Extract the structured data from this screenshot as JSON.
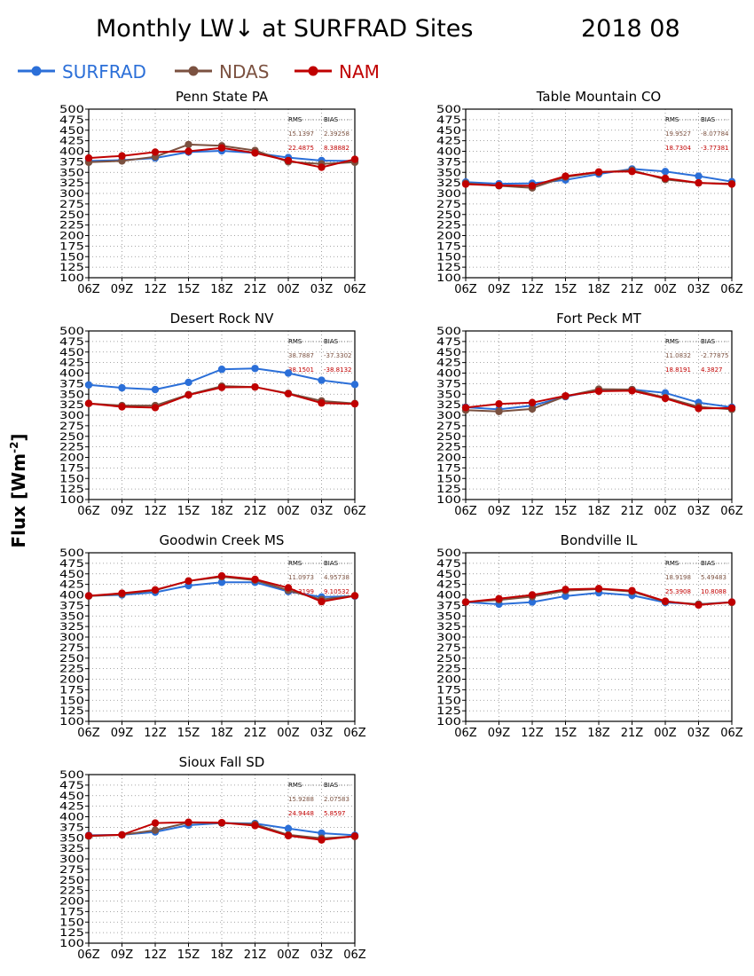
{
  "title": "Monthly LW↓ at SURFRAD Sites",
  "date": "2018 08",
  "ylabel_main": "Flux [Wm",
  "ylabel_sup": "-2",
  "ylabel_close": "]",
  "legend": [
    {
      "name": "SURFRAD",
      "color": "#2b6fd8"
    },
    {
      "name": "NDAS",
      "color": "#7b5140"
    },
    {
      "name": "NAM",
      "color": "#c00000"
    }
  ],
  "stats_headers": {
    "rms": "RMS",
    "bias": "BIAS"
  },
  "chart_data": [
    {
      "type": "line",
      "title": "Penn State PA",
      "x": [
        "06Z",
        "09Z",
        "12Z",
        "15Z",
        "18Z",
        "21Z",
        "00Z",
        "03Z",
        "06Z"
      ],
      "ylim": [
        100,
        500
      ],
      "ytick_step": 25,
      "grid": true,
      "series": [
        {
          "name": "SURFRAD",
          "values": [
            377,
            379,
            384,
            398,
            401,
            396,
            385,
            378,
            377
          ]
        },
        {
          "name": "NDAS",
          "values": [
            374,
            377,
            387,
            416,
            413,
            402,
            375,
            370,
            374
          ]
        },
        {
          "name": "NAM",
          "values": [
            384,
            389,
            398,
            400,
            408,
            396,
            378,
            362,
            381
          ]
        }
      ],
      "stats": [
        {
          "rms": "15.1397",
          "bias": "2.39258",
          "series": "NDAS"
        },
        {
          "rms": "22.4875",
          "bias": "8.38882",
          "series": "NAM"
        }
      ]
    },
    {
      "type": "line",
      "title": "Table Mountain CO",
      "x": [
        "06Z",
        "09Z",
        "12Z",
        "15Z",
        "18Z",
        "21Z",
        "00Z",
        "03Z",
        "06Z"
      ],
      "ylim": [
        100,
        500
      ],
      "ytick_step": 25,
      "grid": true,
      "series": [
        {
          "name": "SURFRAD",
          "values": [
            327,
            323,
            324,
            332,
            346,
            358,
            352,
            341,
            328
          ]
        },
        {
          "name": "NDAS",
          "values": [
            324,
            318,
            313,
            339,
            350,
            355,
            333,
            325,
            323
          ]
        },
        {
          "name": "NAM",
          "values": [
            322,
            319,
            318,
            341,
            351,
            352,
            336,
            325,
            322
          ]
        }
      ],
      "stats": [
        {
          "rms": "19.9527",
          "bias": "-8.07784",
          "series": "NDAS"
        },
        {
          "rms": "18.7304",
          "bias": "-3.77381",
          "series": "NAM"
        }
      ]
    },
    {
      "type": "line",
      "title": "Desert Rock NV",
      "x": [
        "06Z",
        "09Z",
        "12Z",
        "15Z",
        "18Z",
        "21Z",
        "00Z",
        "03Z",
        "06Z"
      ],
      "ylim": [
        100,
        500
      ],
      "ytick_step": 25,
      "grid": true,
      "series": [
        {
          "name": "SURFRAD",
          "values": [
            372,
            365,
            361,
            378,
            409,
            411,
            400,
            383,
            373
          ]
        },
        {
          "name": "NDAS",
          "values": [
            328,
            323,
            323,
            349,
            369,
            367,
            352,
            334,
            328
          ]
        },
        {
          "name": "NAM",
          "values": [
            328,
            320,
            318,
            348,
            366,
            367,
            351,
            329,
            327
          ]
        }
      ],
      "stats": [
        {
          "rms": "38.7887",
          "bias": "-37.3302",
          "series": "NDAS"
        },
        {
          "rms": "38.1501",
          "bias": "-38.8132",
          "series": "NAM"
        }
      ]
    },
    {
      "type": "line",
      "title": "Fort Peck MT",
      "x": [
        "06Z",
        "09Z",
        "12Z",
        "15Z",
        "18Z",
        "21Z",
        "00Z",
        "03Z",
        "06Z"
      ],
      "ylim": [
        100,
        500
      ],
      "ytick_step": 25,
      "grid": true,
      "series": [
        {
          "name": "SURFRAD",
          "values": [
            319,
            314,
            323,
            344,
            360,
            361,
            353,
            330,
            319
          ]
        },
        {
          "name": "NDAS",
          "values": [
            312,
            309,
            315,
            345,
            362,
            361,
            342,
            320,
            314
          ]
        },
        {
          "name": "NAM",
          "values": [
            318,
            327,
            330,
            346,
            357,
            358,
            340,
            316,
            317
          ]
        }
      ],
      "stats": [
        {
          "rms": "11.0832",
          "bias": "-2.77875",
          "series": "NDAS"
        },
        {
          "rms": "18.8191",
          "bias": "4.3827",
          "series": "NAM"
        }
      ]
    },
    {
      "type": "line",
      "title": "Goodwin Creek MS",
      "x": [
        "06Z",
        "09Z",
        "12Z",
        "15Z",
        "18Z",
        "21Z",
        "00Z",
        "03Z",
        "06Z"
      ],
      "ylim": [
        100,
        500
      ],
      "ytick_step": 25,
      "grid": true,
      "series": [
        {
          "name": "SURFRAD",
          "values": [
            398,
            400,
            406,
            422,
            430,
            430,
            408,
            395,
            397
          ]
        },
        {
          "name": "NDAS",
          "values": [
            397,
            402,
            411,
            433,
            443,
            435,
            411,
            389,
            398
          ]
        },
        {
          "name": "NAM",
          "values": [
            398,
            404,
            412,
            433,
            445,
            437,
            417,
            384,
            398
          ]
        }
      ],
      "stats": [
        {
          "rms": "11.0973",
          "bias": "4.95738",
          "series": "NDAS"
        },
        {
          "rms": "13.3199",
          "bias": "9.10532",
          "series": "NAM"
        }
      ]
    },
    {
      "type": "line",
      "title": "Bondville IL",
      "x": [
        "06Z",
        "09Z",
        "12Z",
        "15Z",
        "18Z",
        "21Z",
        "00Z",
        "03Z",
        "06Z"
      ],
      "ylim": [
        100,
        500
      ],
      "ytick_step": 25,
      "grid": true,
      "series": [
        {
          "name": "SURFRAD",
          "values": [
            383,
            378,
            383,
            397,
            405,
            399,
            382,
            378,
            383
          ]
        },
        {
          "name": "NDAS",
          "values": [
            383,
            388,
            396,
            410,
            414,
            408,
            384,
            378,
            382
          ]
        },
        {
          "name": "NAM",
          "values": [
            383,
            391,
            400,
            413,
            415,
            410,
            385,
            376,
            383
          ]
        }
      ],
      "stats": [
        {
          "rms": "18.9198",
          "bias": "5.49483",
          "series": "NDAS"
        },
        {
          "rms": "25.3908",
          "bias": "10.8088",
          "series": "NAM"
        }
      ]
    },
    {
      "type": "line",
      "title": "Sioux Fall SD",
      "x": [
        "06Z",
        "09Z",
        "12Z",
        "15Z",
        "18Z",
        "21Z",
        "00Z",
        "03Z",
        "06Z"
      ],
      "ylim": [
        100,
        500
      ],
      "ytick_step": 25,
      "grid": true,
      "series": [
        {
          "name": "SURFRAD",
          "values": [
            356,
            357,
            364,
            380,
            385,
            384,
            372,
            361,
            356
          ]
        },
        {
          "name": "NDAS",
          "values": [
            354,
            357,
            368,
            386,
            385,
            382,
            357,
            349,
            353
          ]
        },
        {
          "name": "NAM",
          "values": [
            355,
            357,
            385,
            387,
            386,
            379,
            355,
            345,
            354
          ]
        }
      ],
      "stats": [
        {
          "rms": "15.9288",
          "bias": "2.07583",
          "series": "NDAS"
        },
        {
          "rms": "24.9448",
          "bias": "5.8597",
          "series": "NAM"
        }
      ]
    }
  ]
}
